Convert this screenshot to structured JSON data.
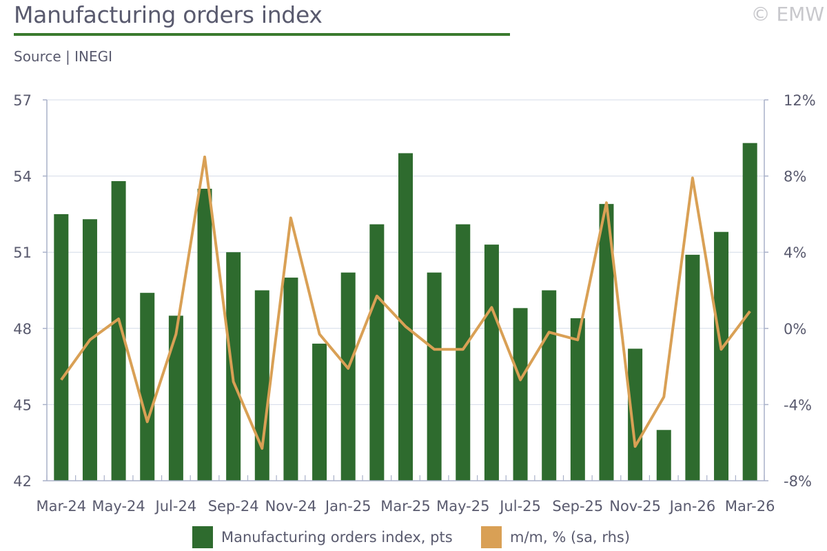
{
  "header": {
    "title": "Manufacturing orders index",
    "subtitle": "Source | INEGI",
    "copyright": "© EMW"
  },
  "colors": {
    "bar": "#2e6b2e",
    "line": "#d9a055",
    "axis": "#a9b1c9",
    "title_rule": "#3a7a2e"
  },
  "legend": {
    "bars": "Manufacturing orders index, pts",
    "line": "m/m, % (sa, rhs)"
  },
  "chart_data": {
    "type": "bar",
    "categories": [
      "Mar-24",
      "Apr-24",
      "May-24",
      "Jun-24",
      "Jul-24",
      "Aug-24",
      "Sep-24",
      "Oct-24",
      "Nov-24",
      "Dec-24",
      "Jan-25",
      "Feb-25",
      "Mar-25",
      "Apr-25",
      "May-25",
      "Jun-25",
      "Jul-25",
      "Aug-25",
      "Sep-25",
      "Oct-25",
      "Nov-25",
      "Dec-25",
      "Jan-26",
      "Feb-26",
      "Mar-26"
    ],
    "x_tick_labels": [
      "Mar-24",
      "May-24",
      "Jul-24",
      "Sep-24",
      "Nov-24",
      "Jan-25",
      "Mar-25",
      "May-25",
      "Jul-25",
      "Sep-25",
      "Nov-25",
      "Jan-26",
      "Mar-26"
    ],
    "series": [
      {
        "name": "Manufacturing orders index, pts",
        "type": "bar",
        "axis": "left",
        "values": [
          52.5,
          52.3,
          53.8,
          49.4,
          48.5,
          53.5,
          51.0,
          49.5,
          50.0,
          47.4,
          50.2,
          52.1,
          54.9,
          50.2,
          52.1,
          51.3,
          48.8,
          49.5,
          48.4,
          52.9,
          47.2,
          44.0,
          50.9,
          51.8,
          55.3
        ]
      },
      {
        "name": "m/m, % (sa, rhs)",
        "type": "line",
        "axis": "right",
        "values": [
          -2.7,
          -0.6,
          0.5,
          -4.9,
          -0.3,
          9.0,
          -2.8,
          -6.3,
          5.8,
          -0.3,
          -2.1,
          1.7,
          0.1,
          -1.1,
          -1.1,
          1.1,
          -2.7,
          -0.2,
          -0.6,
          6.6,
          -6.2,
          -3.6,
          7.9,
          -1.1,
          0.9
        ]
      }
    ],
    "y_left": {
      "ticks": [
        "42",
        "45",
        "48",
        "51",
        "54",
        "57"
      ],
      "ylim": [
        42,
        57
      ]
    },
    "y_right": {
      "ticks": [
        "-8%",
        "-4%",
        "0%",
        "4%",
        "8%",
        "12%"
      ],
      "ylim": [
        -8,
        12
      ]
    },
    "grid": true,
    "legend_position": "bottom"
  }
}
